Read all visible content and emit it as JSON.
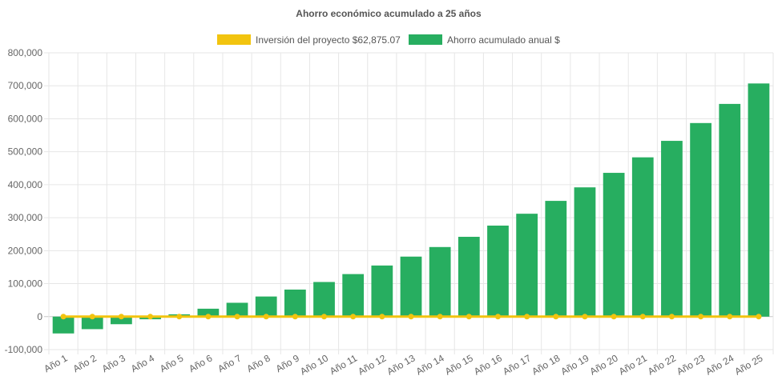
{
  "chart_data": {
    "type": "bar",
    "title": "Ahorro económico acumulado a 25 años",
    "legend_position": "top",
    "grid": true,
    "categories": [
      "Año 1",
      "Año 2",
      "Año 3",
      "Año 4",
      "Año 5",
      "Año 6",
      "Año 7",
      "Año 8",
      "Año 9",
      "Año 10",
      "Año 11",
      "Año 12",
      "Año 13",
      "Año 14",
      "Año 15",
      "Año 16",
      "Año 17",
      "Año 18",
      "Año 19",
      "Año 20",
      "Año 21",
      "Año 22",
      "Año 23",
      "Año 24",
      "Año 25"
    ],
    "ylim": [
      -100000,
      800000
    ],
    "yticks": [
      800000,
      700000,
      600000,
      500000,
      400000,
      300000,
      200000,
      100000,
      0,
      -100000
    ],
    "ytick_labels": [
      "800,000",
      "700,000",
      "600,000",
      "500,000",
      "400,000",
      "300,000",
      "200,000",
      "100,000",
      "0",
      "-100,000"
    ],
    "series": [
      {
        "name": "Inversión del proyecto $62,875.07",
        "type": "line",
        "color": "#f2c40f",
        "values": [
          0,
          0,
          0,
          0,
          0,
          0,
          0,
          0,
          0,
          0,
          0,
          0,
          0,
          0,
          0,
          0,
          0,
          0,
          0,
          0,
          0,
          0,
          0,
          0,
          0
        ]
      },
      {
        "name": "Ahorro acumulado anual $",
        "type": "bar",
        "color": "#27ae60",
        "values": [
          -51000,
          -38000,
          -23000,
          -8000,
          7000,
          24000,
          42000,
          61000,
          82000,
          105000,
          129000,
          155000,
          182000,
          211000,
          242000,
          276000,
          312000,
          351000,
          392000,
          436000,
          483000,
          533000,
          587000,
          645000,
          707000
        ]
      }
    ]
  }
}
